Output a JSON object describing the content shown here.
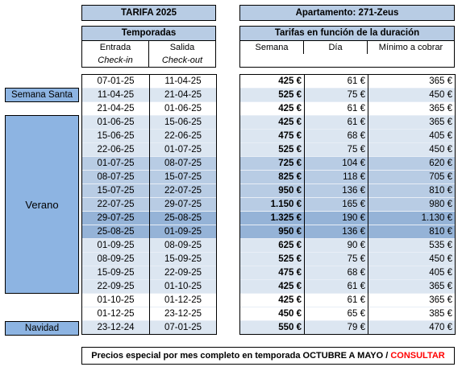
{
  "header": {
    "tarifa": "TARIFA 2025",
    "apartamento": "Apartamento: 271-Zeus"
  },
  "temporadas": {
    "title": "Temporadas",
    "col_entrada": "Entrada",
    "col_salida": "Salida",
    "checkin": "Check-in",
    "checkout": "Check-out"
  },
  "tarifas": {
    "title": "Tarifas en función de la duración",
    "col_semana": "Semana",
    "col_dia": "Día",
    "col_minimo": "Mínimo a cobrar"
  },
  "season_labels": {
    "semana_santa": "Semana Santa",
    "verano": "Verano",
    "navidad": "Navidad"
  },
  "colors": {
    "header_blue": "#b8cce4",
    "label_blue": "#8db4e2",
    "light_blue": "#dce6f1",
    "medium_blue": "#b8cce4",
    "dark_blue": "#95b3d7",
    "consult_red": "#ff0000"
  },
  "rows": [
    {
      "entrada": "07-01-25",
      "salida": "11-04-25",
      "semana": "425 €",
      "dia": "61 €",
      "minimo": "365 €",
      "shade": "white"
    },
    {
      "entrada": "11-04-25",
      "salida": "21-04-25",
      "semana": "525 €",
      "dia": "75 €",
      "minimo": "450 €",
      "shade": "light"
    },
    {
      "entrada": "21-04-25",
      "salida": "01-06-25",
      "semana": "425 €",
      "dia": "61 €",
      "minimo": "365 €",
      "shade": "white"
    },
    {
      "entrada": "01-06-25",
      "salida": "15-06-25",
      "semana": "425 €",
      "dia": "61 €",
      "minimo": "365 €",
      "shade": "light"
    },
    {
      "entrada": "15-06-25",
      "salida": "22-06-25",
      "semana": "475 €",
      "dia": "68 €",
      "minimo": "405 €",
      "shade": "light"
    },
    {
      "entrada": "22-06-25",
      "salida": "01-07-25",
      "semana": "525 €",
      "dia": "75 €",
      "minimo": "450 €",
      "shade": "light"
    },
    {
      "entrada": "01-07-25",
      "salida": "08-07-25",
      "semana": "725 €",
      "dia": "104 €",
      "minimo": "620 €",
      "shade": "medium"
    },
    {
      "entrada": "08-07-25",
      "salida": "15-07-25",
      "semana": "825 €",
      "dia": "118 €",
      "minimo": "705 €",
      "shade": "medium"
    },
    {
      "entrada": "15-07-25",
      "salida": "22-07-25",
      "semana": "950 €",
      "dia": "136 €",
      "minimo": "810 €",
      "shade": "medium"
    },
    {
      "entrada": "22-07-25",
      "salida": "29-07-25",
      "semana": "1.150 €",
      "dia": "165 €",
      "minimo": "980 €",
      "shade": "medium"
    },
    {
      "entrada": "29-07-25",
      "salida": "25-08-25",
      "semana": "1.325 €",
      "dia": "190 €",
      "minimo": "1.130 €",
      "shade": "dark"
    },
    {
      "entrada": "25-08-25",
      "salida": "01-09-25",
      "semana": "950 €",
      "dia": "136 €",
      "minimo": "810 €",
      "shade": "dark"
    },
    {
      "entrada": "01-09-25",
      "salida": "08-09-25",
      "semana": "625 €",
      "dia": "90 €",
      "minimo": "535 €",
      "shade": "light"
    },
    {
      "entrada": "08-09-25",
      "salida": "15-09-25",
      "semana": "525 €",
      "dia": "75 €",
      "minimo": "450 €",
      "shade": "light"
    },
    {
      "entrada": "15-09-25",
      "salida": "22-09-25",
      "semana": "475 €",
      "dia": "68 €",
      "minimo": "405 €",
      "shade": "light"
    },
    {
      "entrada": "22-09-25",
      "salida": "01-10-25",
      "semana": "425 €",
      "dia": "61 €",
      "minimo": "365 €",
      "shade": "light"
    },
    {
      "entrada": "01-10-25",
      "salida": "01-12-25",
      "semana": "425 €",
      "dia": "61 €",
      "minimo": "365 €",
      "shade": "white"
    },
    {
      "entrada": "01-12-25",
      "salida": "23-12-25",
      "semana": "450 €",
      "dia": "65 €",
      "minimo": "385 €",
      "shade": "white"
    },
    {
      "entrada": "23-12-24",
      "salida": "07-01-25",
      "semana": "550 €",
      "dia": "79 €",
      "minimo": "470 €",
      "shade": "light"
    }
  ],
  "footer": {
    "text": "Precios especial por mes completo en temporada OCTUBRE A MAYO / ",
    "consult": "CONSULTAR"
  }
}
